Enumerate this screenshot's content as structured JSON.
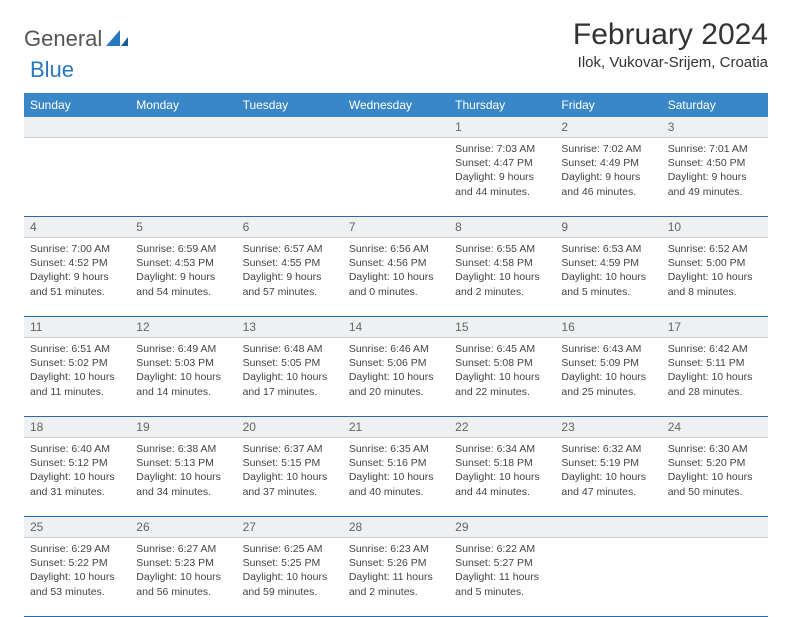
{
  "logo": {
    "word1": "General",
    "word2": "Blue"
  },
  "title": "February 2024",
  "location": "Ilok, Vukovar-Srijem, Croatia",
  "colors": {
    "header_bg": "#3a87c8",
    "header_text": "#ffffff",
    "daynum_bg": "#eef0f2",
    "week_border": "#2a6aa8",
    "logo_gray": "#555555",
    "logo_blue": "#2878c0"
  },
  "weekdays": [
    "Sunday",
    "Monday",
    "Tuesday",
    "Wednesday",
    "Thursday",
    "Friday",
    "Saturday"
  ],
  "weeks": [
    [
      {
        "n": "",
        "lines": []
      },
      {
        "n": "",
        "lines": []
      },
      {
        "n": "",
        "lines": []
      },
      {
        "n": "",
        "lines": []
      },
      {
        "n": "1",
        "lines": [
          "Sunrise: 7:03 AM",
          "Sunset: 4:47 PM",
          "Daylight: 9 hours and 44 minutes."
        ]
      },
      {
        "n": "2",
        "lines": [
          "Sunrise: 7:02 AM",
          "Sunset: 4:49 PM",
          "Daylight: 9 hours and 46 minutes."
        ]
      },
      {
        "n": "3",
        "lines": [
          "Sunrise: 7:01 AM",
          "Sunset: 4:50 PM",
          "Daylight: 9 hours and 49 minutes."
        ]
      }
    ],
    [
      {
        "n": "4",
        "lines": [
          "Sunrise: 7:00 AM",
          "Sunset: 4:52 PM",
          "Daylight: 9 hours and 51 minutes."
        ]
      },
      {
        "n": "5",
        "lines": [
          "Sunrise: 6:59 AM",
          "Sunset: 4:53 PM",
          "Daylight: 9 hours and 54 minutes."
        ]
      },
      {
        "n": "6",
        "lines": [
          "Sunrise: 6:57 AM",
          "Sunset: 4:55 PM",
          "Daylight: 9 hours and 57 minutes."
        ]
      },
      {
        "n": "7",
        "lines": [
          "Sunrise: 6:56 AM",
          "Sunset: 4:56 PM",
          "Daylight: 10 hours and 0 minutes."
        ]
      },
      {
        "n": "8",
        "lines": [
          "Sunrise: 6:55 AM",
          "Sunset: 4:58 PM",
          "Daylight: 10 hours and 2 minutes."
        ]
      },
      {
        "n": "9",
        "lines": [
          "Sunrise: 6:53 AM",
          "Sunset: 4:59 PM",
          "Daylight: 10 hours and 5 minutes."
        ]
      },
      {
        "n": "10",
        "lines": [
          "Sunrise: 6:52 AM",
          "Sunset: 5:00 PM",
          "Daylight: 10 hours and 8 minutes."
        ]
      }
    ],
    [
      {
        "n": "11",
        "lines": [
          "Sunrise: 6:51 AM",
          "Sunset: 5:02 PM",
          "Daylight: 10 hours and 11 minutes."
        ]
      },
      {
        "n": "12",
        "lines": [
          "Sunrise: 6:49 AM",
          "Sunset: 5:03 PM",
          "Daylight: 10 hours and 14 minutes."
        ]
      },
      {
        "n": "13",
        "lines": [
          "Sunrise: 6:48 AM",
          "Sunset: 5:05 PM",
          "Daylight: 10 hours and 17 minutes."
        ]
      },
      {
        "n": "14",
        "lines": [
          "Sunrise: 6:46 AM",
          "Sunset: 5:06 PM",
          "Daylight: 10 hours and 20 minutes."
        ]
      },
      {
        "n": "15",
        "lines": [
          "Sunrise: 6:45 AM",
          "Sunset: 5:08 PM",
          "Daylight: 10 hours and 22 minutes."
        ]
      },
      {
        "n": "16",
        "lines": [
          "Sunrise: 6:43 AM",
          "Sunset: 5:09 PM",
          "Daylight: 10 hours and 25 minutes."
        ]
      },
      {
        "n": "17",
        "lines": [
          "Sunrise: 6:42 AM",
          "Sunset: 5:11 PM",
          "Daylight: 10 hours and 28 minutes."
        ]
      }
    ],
    [
      {
        "n": "18",
        "lines": [
          "Sunrise: 6:40 AM",
          "Sunset: 5:12 PM",
          "Daylight: 10 hours and 31 minutes."
        ]
      },
      {
        "n": "19",
        "lines": [
          "Sunrise: 6:38 AM",
          "Sunset: 5:13 PM",
          "Daylight: 10 hours and 34 minutes."
        ]
      },
      {
        "n": "20",
        "lines": [
          "Sunrise: 6:37 AM",
          "Sunset: 5:15 PM",
          "Daylight: 10 hours and 37 minutes."
        ]
      },
      {
        "n": "21",
        "lines": [
          "Sunrise: 6:35 AM",
          "Sunset: 5:16 PM",
          "Daylight: 10 hours and 40 minutes."
        ]
      },
      {
        "n": "22",
        "lines": [
          "Sunrise: 6:34 AM",
          "Sunset: 5:18 PM",
          "Daylight: 10 hours and 44 minutes."
        ]
      },
      {
        "n": "23",
        "lines": [
          "Sunrise: 6:32 AM",
          "Sunset: 5:19 PM",
          "Daylight: 10 hours and 47 minutes."
        ]
      },
      {
        "n": "24",
        "lines": [
          "Sunrise: 6:30 AM",
          "Sunset: 5:20 PM",
          "Daylight: 10 hours and 50 minutes."
        ]
      }
    ],
    [
      {
        "n": "25",
        "lines": [
          "Sunrise: 6:29 AM",
          "Sunset: 5:22 PM",
          "Daylight: 10 hours and 53 minutes."
        ]
      },
      {
        "n": "26",
        "lines": [
          "Sunrise: 6:27 AM",
          "Sunset: 5:23 PM",
          "Daylight: 10 hours and 56 minutes."
        ]
      },
      {
        "n": "27",
        "lines": [
          "Sunrise: 6:25 AM",
          "Sunset: 5:25 PM",
          "Daylight: 10 hours and 59 minutes."
        ]
      },
      {
        "n": "28",
        "lines": [
          "Sunrise: 6:23 AM",
          "Sunset: 5:26 PM",
          "Daylight: 11 hours and 2 minutes."
        ]
      },
      {
        "n": "29",
        "lines": [
          "Sunrise: 6:22 AM",
          "Sunset: 5:27 PM",
          "Daylight: 11 hours and 5 minutes."
        ]
      },
      {
        "n": "",
        "lines": []
      },
      {
        "n": "",
        "lines": []
      }
    ]
  ]
}
